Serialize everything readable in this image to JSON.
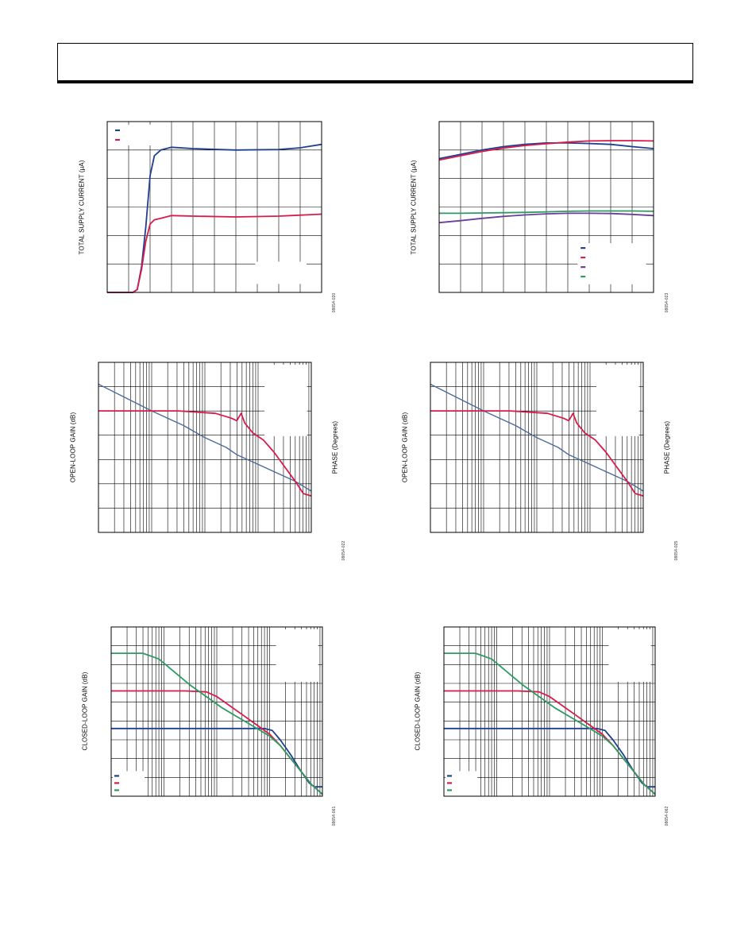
{
  "colors": {
    "blue": "#1f3f8f",
    "red": "#d81b4a",
    "purple": "#6a3e9a",
    "green": "#2e9b63",
    "phase_blue": "#4a6a9e",
    "grid": "#000000"
  },
  "charts": [
    {
      "id": "c1",
      "type": "line",
      "ylabel": "TOTAL SUPPLY CURRENT (µA)",
      "rlabel": "",
      "figid": "08654-020",
      "xscale": "linear",
      "xdiv": 10,
      "ydiv": 6,
      "legend": {
        "placement": "top-left",
        "colors": [
          "blue",
          "red"
        ]
      },
      "note": true
    },
    {
      "id": "c2",
      "type": "line",
      "ylabel": "TOTAL SUPPLY CURRENT (µA)",
      "rlabel": "",
      "figid": "08654-023",
      "xscale": "linear",
      "xdiv": 10,
      "ydiv": 6,
      "legend": {
        "placement": "bottom-right",
        "colors": [
          "blue",
          "red",
          "purple",
          "green"
        ]
      },
      "note": false
    },
    {
      "id": "c3",
      "type": "line",
      "ylabel": "OPEN-LOOP GAIN (dB)",
      "rlabel": "PHASE (Degrees)",
      "figid": "08654-022",
      "xscale": "log",
      "xdecades": 4,
      "ydiv": 7,
      "legend": {
        "placement": "none",
        "colors": []
      },
      "note": true
    },
    {
      "id": "c4",
      "type": "line",
      "ylabel": "OPEN-LOOP GAIN (dB)",
      "rlabel": "PHASE (Degrees)",
      "figid": "08654-025",
      "xscale": "log",
      "xdecades": 4,
      "ydiv": 7,
      "legend": {
        "placement": "none",
        "colors": []
      },
      "note": true
    },
    {
      "id": "c5",
      "type": "line",
      "ylabel": "CLOSED-LOOP GAIN (dB)",
      "rlabel": "",
      "figid": "08654-061",
      "xscale": "log",
      "xdecades": 4,
      "ydiv": 9,
      "legend": {
        "placement": "bottom-left",
        "colors": [
          "blue",
          "red",
          "green"
        ]
      },
      "note": true
    },
    {
      "id": "c6",
      "type": "line",
      "ylabel": "CLOSED-LOOP GAIN (dB)",
      "rlabel": "",
      "figid": "08654-062",
      "xscale": "log",
      "xdecades": 4,
      "ydiv": 9,
      "legend": {
        "placement": "bottom-left",
        "colors": [
          "blue",
          "red",
          "green"
        ]
      },
      "note": true
    }
  ],
  "chart_data": [
    {
      "type": "line",
      "title": "",
      "xlabel": "",
      "ylabel": "TOTAL SUPPLY CURRENT (µA)",
      "xlim": [
        0,
        10
      ],
      "ylim": [
        0,
        6
      ],
      "grid": true,
      "legend": "top-left",
      "series": [
        {
          "color": "blue",
          "points": [
            [
              0,
              0
            ],
            [
              1.2,
              0
            ],
            [
              1.4,
              0.1
            ],
            [
              1.6,
              0.9
            ],
            [
              1.8,
              2.3
            ],
            [
              2.0,
              4.1
            ],
            [
              2.2,
              4.8
            ],
            [
              2.5,
              5.0
            ],
            [
              3.0,
              5.1
            ],
            [
              4.0,
              5.05
            ],
            [
              6.0,
              5.0
            ],
            [
              8.0,
              5.02
            ],
            [
              9.0,
              5.08
            ],
            [
              10.0,
              5.2
            ]
          ]
        },
        {
          "color": "red",
          "points": [
            [
              0,
              0
            ],
            [
              1.2,
              0
            ],
            [
              1.4,
              0.1
            ],
            [
              1.6,
              0.8
            ],
            [
              1.8,
              1.8
            ],
            [
              2.0,
              2.4
            ],
            [
              2.2,
              2.55
            ],
            [
              2.5,
              2.6
            ],
            [
              3.0,
              2.7
            ],
            [
              4.0,
              2.68
            ],
            [
              6.0,
              2.65
            ],
            [
              8.0,
              2.68
            ],
            [
              10.0,
              2.75
            ]
          ]
        }
      ]
    },
    {
      "type": "line",
      "title": "",
      "xlabel": "",
      "ylabel": "TOTAL SUPPLY CURRENT (µA)",
      "xlim": [
        0,
        10
      ],
      "ylim": [
        0,
        6
      ],
      "grid": true,
      "legend": "bottom-right",
      "series": [
        {
          "color": "blue",
          "points": [
            [
              0,
              4.7
            ],
            [
              1,
              4.85
            ],
            [
              2,
              5.0
            ],
            [
              3,
              5.12
            ],
            [
              4,
              5.2
            ],
            [
              5,
              5.25
            ],
            [
              6,
              5.25
            ],
            [
              7,
              5.23
            ],
            [
              8,
              5.2
            ],
            [
              9,
              5.12
            ],
            [
              10,
              5.05
            ]
          ]
        },
        {
          "color": "red",
          "points": [
            [
              0,
              4.65
            ],
            [
              1,
              4.8
            ],
            [
              2,
              4.95
            ],
            [
              3,
              5.07
            ],
            [
              4,
              5.16
            ],
            [
              5,
              5.22
            ],
            [
              6,
              5.28
            ],
            [
              7,
              5.32
            ],
            [
              8,
              5.33
            ],
            [
              9,
              5.33
            ],
            [
              10,
              5.32
            ]
          ]
        },
        {
          "color": "purple",
          "points": [
            [
              0,
              2.45
            ],
            [
              1,
              2.52
            ],
            [
              2,
              2.6
            ],
            [
              3,
              2.67
            ],
            [
              4,
              2.72
            ],
            [
              5,
              2.76
            ],
            [
              6,
              2.78
            ],
            [
              7,
              2.78
            ],
            [
              8,
              2.77
            ],
            [
              9,
              2.74
            ],
            [
              10,
              2.7
            ]
          ]
        },
        {
          "color": "green",
          "points": [
            [
              0,
              2.78
            ],
            [
              1,
              2.78
            ],
            [
              2,
              2.79
            ],
            [
              3,
              2.8
            ],
            [
              4,
              2.81
            ],
            [
              5,
              2.83
            ],
            [
              6,
              2.85
            ],
            [
              7,
              2.86
            ],
            [
              8,
              2.86
            ],
            [
              9,
              2.86
            ],
            [
              10,
              2.85
            ]
          ]
        }
      ]
    },
    {
      "type": "line",
      "title": "",
      "xlabel": "",
      "ylabel": "OPEN-LOOP GAIN (dB)",
      "xlim": [
        0,
        4
      ],
      "ylim": [
        0,
        7
      ],
      "grid": true,
      "legend": "none",
      "series": [
        {
          "color": "phase_blue",
          "points": [
            [
              0,
              6.1
            ],
            [
              1,
              5.0
            ],
            [
              1.6,
              4.4
            ],
            [
              2.0,
              3.9
            ],
            [
              2.4,
              3.5
            ],
            [
              2.6,
              3.2
            ],
            [
              3.0,
              2.8
            ],
            [
              3.4,
              2.4
            ],
            [
              3.7,
              2.1
            ],
            [
              4.0,
              1.7
            ]
          ]
        },
        {
          "color": "red",
          "points": [
            [
              0,
              5.0
            ],
            [
              1.5,
              5.0
            ],
            [
              2.2,
              4.9
            ],
            [
              2.5,
              4.7
            ],
            [
              2.6,
              4.6
            ],
            [
              2.68,
              4.9
            ],
            [
              2.75,
              4.5
            ],
            [
              2.9,
              4.1
            ],
            [
              3.1,
              3.8
            ],
            [
              3.3,
              3.3
            ],
            [
              3.5,
              2.7
            ],
            [
              3.7,
              2.1
            ],
            [
              3.85,
              1.6
            ],
            [
              4.0,
              1.5
            ]
          ]
        }
      ]
    },
    {
      "type": "line",
      "title": "",
      "xlabel": "",
      "ylabel": "OPEN-LOOP GAIN (dB)",
      "xlim": [
        0,
        4
      ],
      "ylim": [
        0,
        7
      ],
      "grid": true,
      "legend": "none",
      "series": [
        {
          "color": "phase_blue",
          "points": [
            [
              0,
              6.1
            ],
            [
              1,
              5.0
            ],
            [
              1.6,
              4.4
            ],
            [
              2.0,
              3.9
            ],
            [
              2.4,
              3.5
            ],
            [
              2.6,
              3.2
            ],
            [
              3.0,
              2.8
            ],
            [
              3.4,
              2.4
            ],
            [
              3.7,
              2.1
            ],
            [
              4.0,
              1.7
            ]
          ]
        },
        {
          "color": "red",
          "points": [
            [
              0,
              5.0
            ],
            [
              1.5,
              5.0
            ],
            [
              2.2,
              4.9
            ],
            [
              2.5,
              4.7
            ],
            [
              2.6,
              4.6
            ],
            [
              2.68,
              4.9
            ],
            [
              2.75,
              4.5
            ],
            [
              2.9,
              4.1
            ],
            [
              3.1,
              3.8
            ],
            [
              3.3,
              3.3
            ],
            [
              3.5,
              2.7
            ],
            [
              3.7,
              2.1
            ],
            [
              3.85,
              1.6
            ],
            [
              4.0,
              1.5
            ]
          ]
        }
      ]
    },
    {
      "type": "line",
      "title": "",
      "xlabel": "",
      "ylabel": "CLOSED-LOOP GAIN (dB)",
      "xlim": [
        0,
        4
      ],
      "ylim": [
        0,
        9
      ],
      "grid": true,
      "legend": "bottom-left",
      "series": [
        {
          "color": "blue",
          "points": [
            [
              0,
              3.6
            ],
            [
              2.6,
              3.6
            ],
            [
              2.9,
              3.6
            ],
            [
              3.05,
              3.5
            ],
            [
              3.2,
              3.0
            ],
            [
              3.4,
              2.2
            ],
            [
              3.6,
              1.3
            ],
            [
              3.75,
              0.7
            ],
            [
              3.85,
              0.5
            ],
            [
              4.0,
              0.5
            ]
          ]
        },
        {
          "color": "red",
          "points": [
            [
              0,
              5.6
            ],
            [
              1.4,
              5.6
            ],
            [
              1.8,
              5.55
            ],
            [
              2.0,
              5.3
            ],
            [
              2.2,
              4.9
            ],
            [
              2.5,
              4.3
            ],
            [
              2.8,
              3.7
            ],
            [
              3.0,
              3.3
            ],
            [
              3.2,
              2.7
            ],
            [
              3.4,
              2.0
            ],
            [
              3.6,
              1.3
            ],
            [
              3.8,
              0.6
            ],
            [
              4.0,
              0.1
            ]
          ]
        },
        {
          "color": "green",
          "points": [
            [
              0,
              7.6
            ],
            [
              0.6,
              7.6
            ],
            [
              0.9,
              7.3
            ],
            [
              1.2,
              6.6
            ],
            [
              1.5,
              5.9
            ],
            [
              1.8,
              5.3
            ],
            [
              2.1,
              4.7
            ],
            [
              2.4,
              4.2
            ],
            [
              2.7,
              3.7
            ],
            [
              3.0,
              3.2
            ],
            [
              3.2,
              2.7
            ],
            [
              3.4,
              2.0
            ],
            [
              3.6,
              1.3
            ],
            [
              3.8,
              0.6
            ],
            [
              4.0,
              0.1
            ]
          ]
        }
      ]
    },
    {
      "type": "line",
      "title": "",
      "xlabel": "",
      "ylabel": "CLOSED-LOOP GAIN (dB)",
      "xlim": [
        0,
        4
      ],
      "ylim": [
        0,
        9
      ],
      "grid": true,
      "legend": "bottom-left",
      "series": [
        {
          "color": "blue",
          "points": [
            [
              0,
              3.6
            ],
            [
              2.6,
              3.6
            ],
            [
              2.9,
              3.6
            ],
            [
              3.05,
              3.5
            ],
            [
              3.2,
              3.0
            ],
            [
              3.4,
              2.2
            ],
            [
              3.6,
              1.3
            ],
            [
              3.75,
              0.7
            ],
            [
              3.85,
              0.5
            ],
            [
              4.0,
              0.5
            ]
          ]
        },
        {
          "color": "red",
          "points": [
            [
              0,
              5.6
            ],
            [
              1.4,
              5.6
            ],
            [
              1.8,
              5.55
            ],
            [
              2.0,
              5.3
            ],
            [
              2.2,
              4.9
            ],
            [
              2.5,
              4.3
            ],
            [
              2.8,
              3.7
            ],
            [
              3.0,
              3.3
            ],
            [
              3.2,
              2.7
            ],
            [
              3.4,
              2.0
            ],
            [
              3.6,
              1.3
            ],
            [
              3.8,
              0.6
            ],
            [
              4.0,
              0.1
            ]
          ]
        },
        {
          "color": "green",
          "points": [
            [
              0,
              7.6
            ],
            [
              0.6,
              7.6
            ],
            [
              0.9,
              7.3
            ],
            [
              1.2,
              6.6
            ],
            [
              1.5,
              5.9
            ],
            [
              1.8,
              5.3
            ],
            [
              2.1,
              4.7
            ],
            [
              2.4,
              4.2
            ],
            [
              2.7,
              3.7
            ],
            [
              3.0,
              3.2
            ],
            [
              3.2,
              2.7
            ],
            [
              3.4,
              2.0
            ],
            [
              3.6,
              1.3
            ],
            [
              3.8,
              0.6
            ],
            [
              4.0,
              0.1
            ]
          ]
        }
      ]
    }
  ]
}
